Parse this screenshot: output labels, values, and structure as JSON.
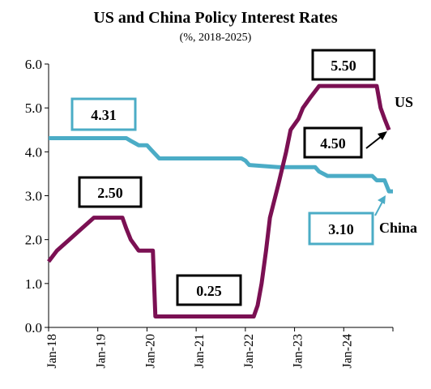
{
  "chart_data": {
    "type": "line",
    "title": "US and China Policy Interest Rates",
    "subtitle": "(%, 2018-2025)",
    "xlabel": "",
    "ylabel": "",
    "ylim": [
      0,
      6
    ],
    "y_ticks": [
      "0.0",
      "1.0",
      "2.0",
      "3.0",
      "4.0",
      "5.0",
      "6.0"
    ],
    "x_ticks": [
      "Jan-18",
      "Jan-19",
      "Jan-20",
      "Jan-21",
      "Jan-22",
      "Jan-23",
      "Jan-24"
    ],
    "x_range": [
      2018.0,
      2025.0
    ],
    "grid": false,
    "legend": "none",
    "series": [
      {
        "name": "US",
        "color": "#7B1053",
        "points": [
          [
            2018.0,
            1.5
          ],
          [
            2018.17,
            1.75
          ],
          [
            2018.42,
            2.0
          ],
          [
            2018.67,
            2.25
          ],
          [
            2018.92,
            2.5
          ],
          [
            2019.5,
            2.5
          ],
          [
            2019.58,
            2.25
          ],
          [
            2019.67,
            2.0
          ],
          [
            2019.83,
            1.75
          ],
          [
            2020.12,
            1.75
          ],
          [
            2020.17,
            0.25
          ],
          [
            2022.17,
            0.25
          ],
          [
            2022.25,
            0.5
          ],
          [
            2022.33,
            1.0
          ],
          [
            2022.42,
            1.75
          ],
          [
            2022.5,
            2.5
          ],
          [
            2022.67,
            3.25
          ],
          [
            2022.83,
            4.0
          ],
          [
            2022.92,
            4.5
          ],
          [
            2023.08,
            4.75
          ],
          [
            2023.17,
            5.0
          ],
          [
            2023.33,
            5.25
          ],
          [
            2023.5,
            5.5
          ],
          [
            2024.67,
            5.5
          ],
          [
            2024.75,
            5.0
          ],
          [
            2024.83,
            4.75
          ],
          [
            2024.92,
            4.5
          ]
        ]
      },
      {
        "name": "China",
        "color": "#4BACC6",
        "points": [
          [
            2018.0,
            4.31
          ],
          [
            2019.58,
            4.31
          ],
          [
            2019.67,
            4.25
          ],
          [
            2019.75,
            4.2
          ],
          [
            2019.83,
            4.15
          ],
          [
            2020.0,
            4.15
          ],
          [
            2020.08,
            4.05
          ],
          [
            2020.25,
            3.85
          ],
          [
            2021.92,
            3.85
          ],
          [
            2022.0,
            3.8
          ],
          [
            2022.08,
            3.7
          ],
          [
            2022.67,
            3.65
          ],
          [
            2023.42,
            3.65
          ],
          [
            2023.5,
            3.55
          ],
          [
            2023.67,
            3.45
          ],
          [
            2024.08,
            3.45
          ],
          [
            2024.58,
            3.45
          ],
          [
            2024.67,
            3.35
          ],
          [
            2024.83,
            3.35
          ],
          [
            2024.92,
            3.1
          ],
          [
            2025.0,
            3.1
          ]
        ]
      }
    ],
    "annotations": [
      {
        "text": "4.31",
        "series": "China",
        "value": 4.31
      },
      {
        "text": "2.50",
        "series": "US",
        "value": 2.5
      },
      {
        "text": "0.25",
        "series": "US",
        "value": 0.25
      },
      {
        "text": "5.50",
        "series": "US",
        "value": 5.5
      },
      {
        "text": "4.50",
        "series": "US",
        "value": 4.5
      },
      {
        "text": "3.10",
        "series": "China",
        "value": 3.1
      }
    ],
    "series_labels": [
      "US",
      "China"
    ]
  }
}
